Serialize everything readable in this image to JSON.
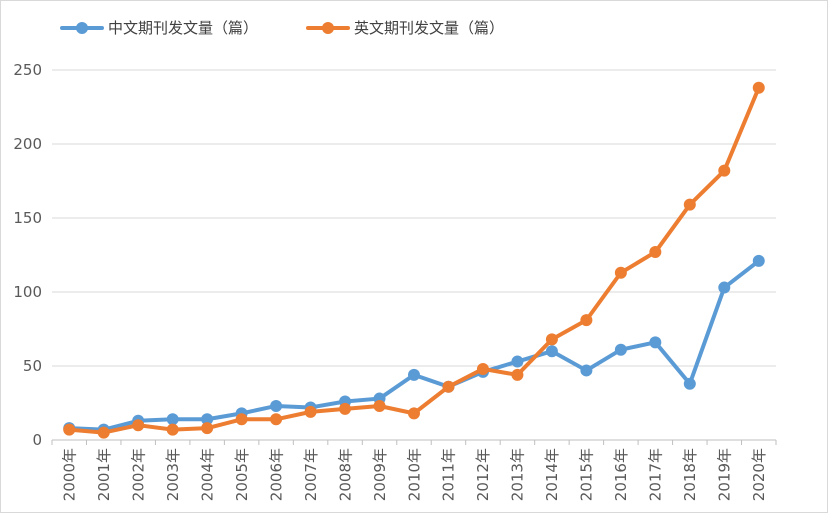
{
  "chart_data": {
    "type": "line",
    "categories": [
      "2000年",
      "2001年",
      "2002年",
      "2003年",
      "2004年",
      "2005年",
      "2006年",
      "2007年",
      "2008年",
      "2009年",
      "2010年",
      "2011年",
      "2012年",
      "2013年",
      "2014年",
      "2015年",
      "2016年",
      "2017年",
      "2018年",
      "2019年",
      "2020年"
    ],
    "series": [
      {
        "name": "中文期刊发文量（篇）",
        "color": "#5b9bd5",
        "values": [
          8,
          7,
          13,
          14,
          14,
          18,
          23,
          22,
          26,
          28,
          44,
          36,
          46,
          53,
          60,
          47,
          61,
          66,
          38,
          103,
          121
        ]
      },
      {
        "name": "英文期刊发文量（篇）",
        "color": "#ed7d31",
        "values": [
          7,
          5,
          10,
          7,
          8,
          14,
          14,
          19,
          21,
          23,
          18,
          36,
          48,
          44,
          68,
          81,
          113,
          127,
          159,
          182,
          238
        ]
      }
    ],
    "yticks": [
      "0",
      "50",
      "100",
      "150",
      "200",
      "250"
    ],
    "ylim": [
      0,
      250
    ],
    "grid": true,
    "legend": "top-left"
  }
}
